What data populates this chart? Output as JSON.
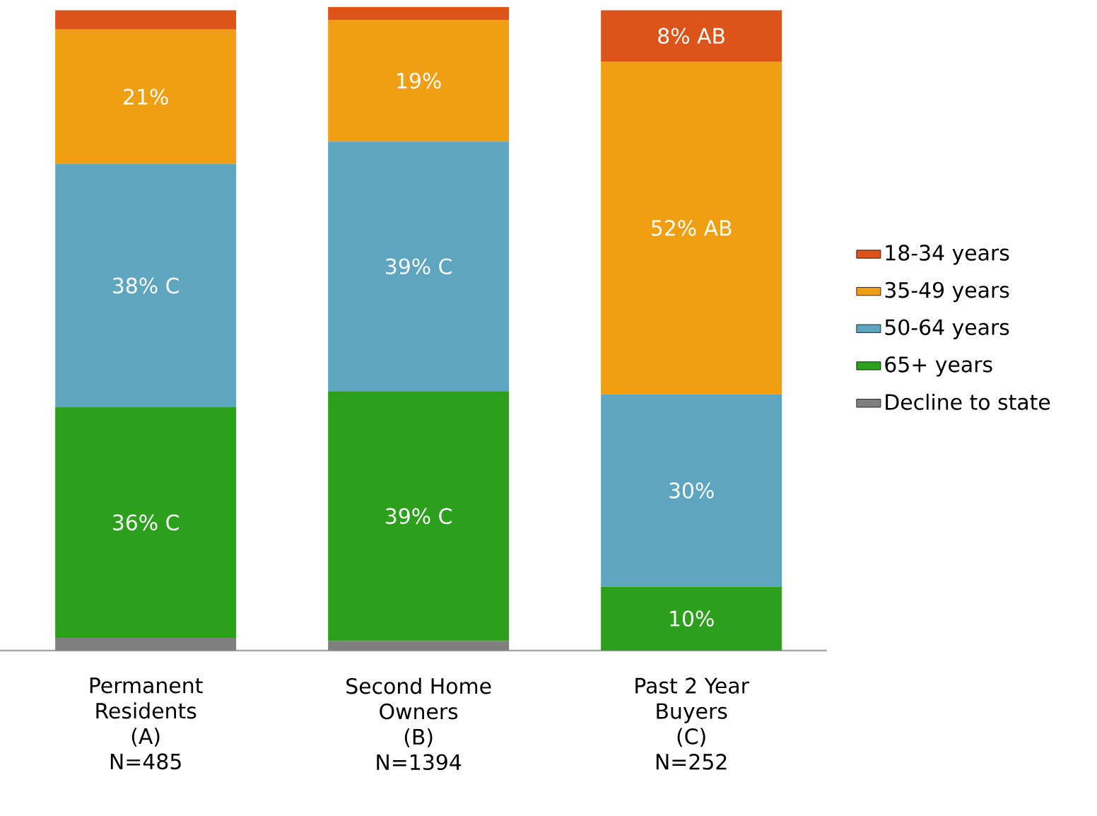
{
  "chart_data": {
    "type": "bar",
    "stacked": true,
    "legend": "right",
    "categories": [
      "Permanent\nResidents\n(A)\nN=485",
      "Second Home\nOwners\n(B)\nN=1394",
      "Past 2 Year\nBuyers\n(C)\nN=252"
    ],
    "series": [
      {
        "name": "Decline to state",
        "color": "#7f7f7f",
        "values": [
          2,
          1.5,
          null
        ]
      },
      {
        "name": "65+ years",
        "color": "#2ca01c",
        "values": [
          36,
          39,
          10
        ],
        "value_labels": [
          "36% C",
          "39% C",
          "10%"
        ]
      },
      {
        "name": "50-64 years",
        "color": "#5ea5c0",
        "values": [
          38,
          39,
          30
        ],
        "value_labels": [
          "38% C",
          "39% C",
          "30%"
        ]
      },
      {
        "name": "35-49 years",
        "color": "#f09e12",
        "values": [
          21,
          19,
          52
        ],
        "value_labels": [
          "21%",
          "19%",
          "52% AB"
        ]
      },
      {
        "name": "18-34 years",
        "color": "#dd541b",
        "values": [
          3,
          2,
          8
        ],
        "value_labels": [
          null,
          null,
          "8% AB"
        ]
      }
    ]
  }
}
